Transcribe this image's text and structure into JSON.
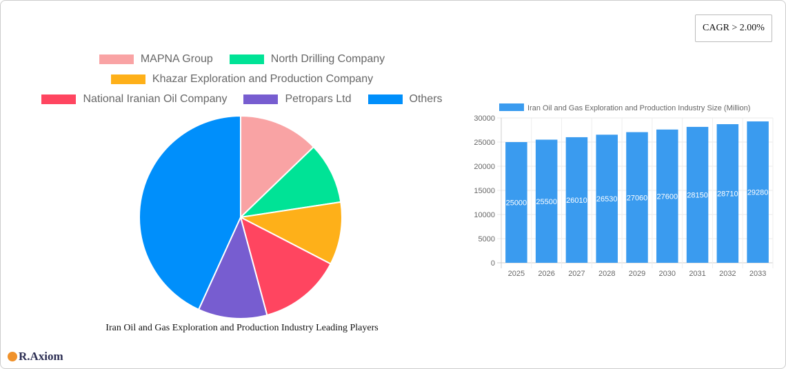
{
  "cagr_label": "CAGR > 2.00%",
  "logo_text": "R.Axiom",
  "chart_data": [
    {
      "type": "pie",
      "title": "Iran Oil and Gas Exploration and Production Industry Leading Players",
      "legend_position": "top",
      "slices": [
        {
          "label": "MAPNA Group",
          "value": 12.8,
          "color": "#f9a3a4"
        },
        {
          "label": "North Drilling Company",
          "value": 9.8,
          "color": "#00e396"
        },
        {
          "label": "Khazar Exploration and Production Company",
          "value": 10,
          "color": "#feb019"
        },
        {
          "label": "National Iranian Oil Company",
          "value": 13.2,
          "color": "#ff4560"
        },
        {
          "label": "Petropars Ltd",
          "value": 11,
          "color": "#775dd0"
        },
        {
          "label": "Others",
          "value": 43.2,
          "color": "#008ffb"
        }
      ]
    },
    {
      "type": "bar",
      "legend": "Iran Oil and Gas Exploration and Production Industry Size (Million)",
      "color": "#3a9bef",
      "categories": [
        "2025",
        "2026",
        "2027",
        "2028",
        "2029",
        "2030",
        "2031",
        "2032",
        "2033"
      ],
      "values": [
        25000,
        25500,
        26010,
        26530,
        27060,
        27600,
        28150,
        28710,
        29280
      ],
      "ylim": [
        0,
        30000
      ],
      "yticks": [
        "0",
        "5000",
        "10000",
        "15000",
        "20000",
        "25000",
        "30000"
      ],
      "grid": true
    }
  ]
}
